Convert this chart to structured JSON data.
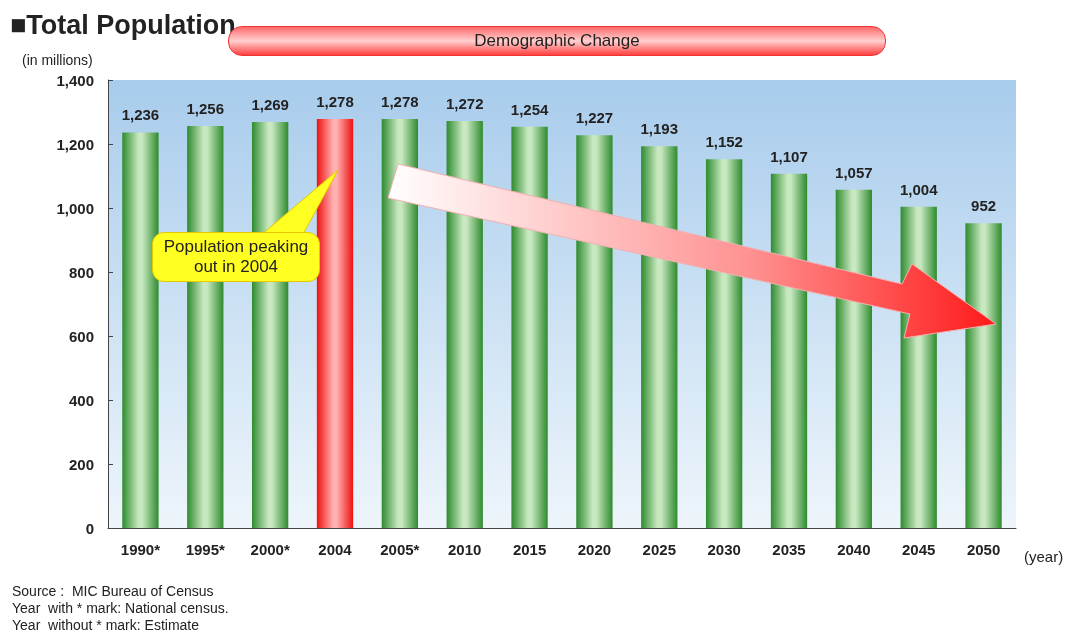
{
  "chart_data": {
    "type": "bar",
    "title": "■Total Population",
    "subtitle": "Demographic Change",
    "ylabel": "(in millions)",
    "xlabel": "(year)",
    "categories": [
      "1990*",
      "1995*",
      "2000*",
      "2004",
      "2005*",
      "2010",
      "2015",
      "2020",
      "2025",
      "2030",
      "2035",
      "2040",
      "2045",
      "2050"
    ],
    "values": [
      1236,
      1256,
      1269,
      1278,
      1278,
      1272,
      1254,
      1227,
      1193,
      1152,
      1107,
      1057,
      1004,
      952
    ],
    "value_labels": [
      "1,236",
      "1,256",
      "1,269",
      "1,278",
      "1,278",
      "1,272",
      "1,254",
      "1,227",
      "1,193",
      "1,152",
      "1,107",
      "1,057",
      "1,004",
      "952"
    ],
    "colors": [
      "#2e8b2e",
      "#2e8b2e",
      "#2e8b2e",
      "#ee1111",
      "#2e8b2e",
      "#2e8b2e",
      "#2e8b2e",
      "#2e8b2e",
      "#2e8b2e",
      "#2e8b2e",
      "#2e8b2e",
      "#2e8b2e",
      "#2e8b2e",
      "#2e8b2e"
    ],
    "ylim": [
      0,
      1400
    ],
    "yticks": [
      0,
      200,
      400,
      600,
      800,
      {
        "value": 1000,
        "label": "1,000"
      },
      {
        "value": 1200,
        "label": "1,200"
      },
      {
        "value": 1400,
        "label": "1,400"
      }
    ],
    "annotations": [
      "Population peaking out in 2004",
      "Source :  MIC Bureau of Census",
      "Year  with * mark: National census.",
      "Year  without * mark: Estimate"
    ]
  }
}
